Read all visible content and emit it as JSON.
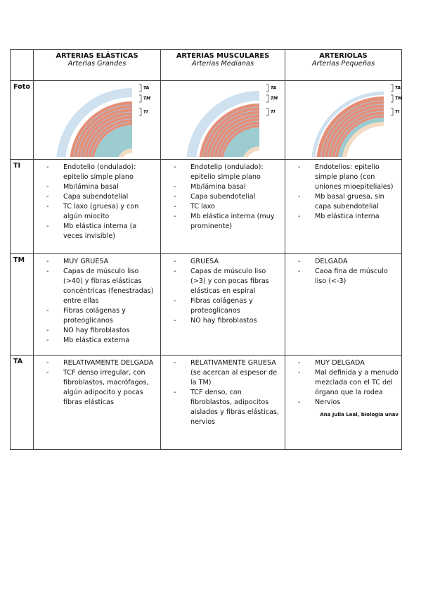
{
  "table": {
    "columns": [
      {
        "title": "ARTERIAS ELÁSTICAS",
        "subtitle": "Arterias Grandes"
      },
      {
        "title": "ARTERIAS MUSCULARES",
        "subtitle": "Arterias Medianas"
      },
      {
        "title": "ARTERIOLAS",
        "subtitle": "Arterias Pequeñas"
      }
    ],
    "photo_row": {
      "label": "Foto",
      "layer_labels": [
        "TA",
        "TM",
        "TI"
      ]
    },
    "rows": [
      {
        "label": "TI",
        "cells": [
          [
            "Endotelio (ondulado): epitelio simple plano",
            "Mb/lámina basal",
            "Capa subendotelial",
            "TC laxo (gruesa) y con algún miocito",
            "Mb elástica interna (a veces invisible)"
          ],
          [
            "Endotelip (ondulado): epitelio simple plano",
            "Mb/lámina basal",
            "Capa subendotelial",
            "TC laxo",
            "Mb elástica interna (muy prominente)"
          ],
          [
            "Endotelios: epitelio simple plano (con uniones mioepiteliales)",
            "Mb basal gruesa, sin capa subendotelial",
            "Mb elástica interna"
          ]
        ]
      },
      {
        "label": "TM",
        "cells": [
          [
            "MUY GRUESA",
            "Capas de músculo liso (>40) y fibras elásticas concéntricas (fenestradas) entre ellas",
            "Fibras colágenas y proteoglicanos",
            "NO hay fibroblastos",
            "Mb elástica externa"
          ],
          [
            "GRUESA",
            "Capas de músculo liso (>3) y con pocas fibras elásticas en espiral",
            "Fibras colágenas y proteoglicanos",
            "NO hay fibroblastos"
          ],
          [
            "DELGADA",
            "Caoa fina de músculo liso (<-3)"
          ]
        ]
      },
      {
        "label": "TA",
        "cells": [
          [
            "RELATIVAMENTE DELGADA",
            "TCF denso irregular, con fibroblastos, macrófagos, algún adipocito y pocas fibras elásticas"
          ],
          [
            "RELATIVAMENTE GRUESA (se acercan al espesor de la TM)",
            "TCF denso, con fibroblastos, adipocitos aislados y fibras elásticas, nervios"
          ],
          [
            "MUY DELGADA",
            "Mal definida y a menudo mezclada con el TC del órgano que la rodea",
            "Nervios"
          ]
        ]
      }
    ],
    "credit": "Ana Julia Leal, biología unav"
  }
}
